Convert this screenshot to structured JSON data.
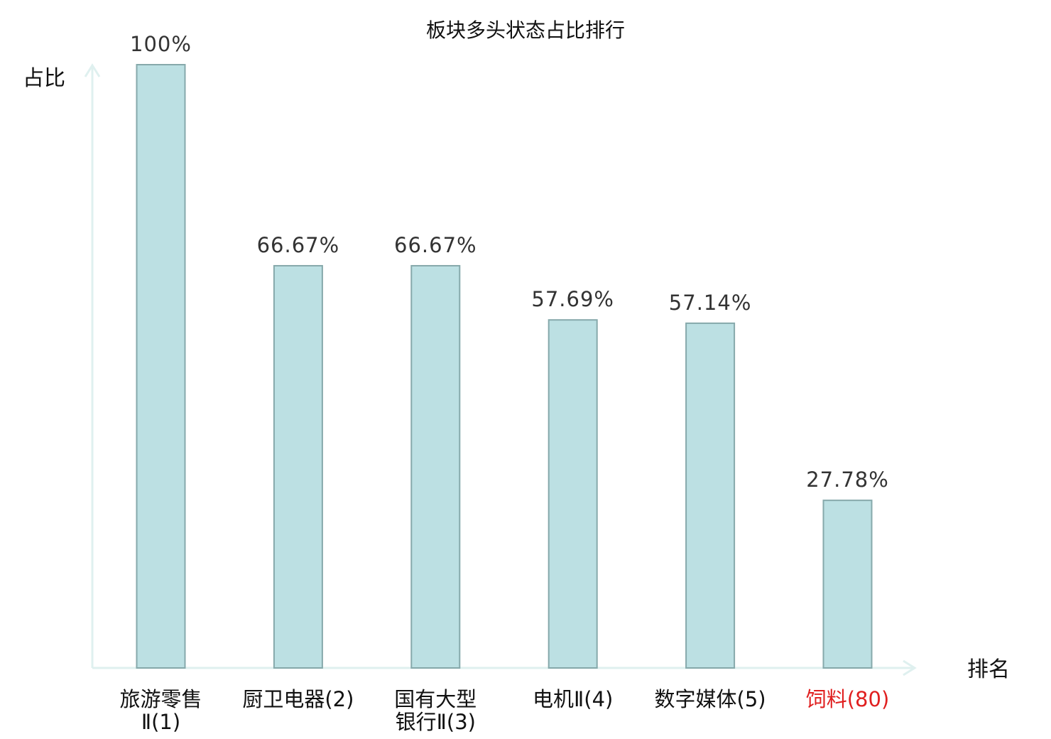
{
  "chart_data": {
    "type": "bar",
    "title": "板块多头状态占比排行",
    "ylabel": "占比",
    "xlabel": "排名",
    "ylim": [
      0,
      100
    ],
    "grid": false,
    "categories": [
      {
        "lines": [
          "旅游零售",
          "Ⅱ(1)"
        ],
        "name": "旅游零售Ⅱ",
        "rank": "(1)"
      },
      {
        "lines": [
          "厨卫电器(2)"
        ],
        "name": "厨卫电器",
        "rank": "(2)"
      },
      {
        "lines": [
          "国有大型",
          "银行Ⅱ(3)"
        ],
        "name": "国有大型银行Ⅱ",
        "rank": "(3)"
      },
      {
        "lines": [
          "电机Ⅱ(4)"
        ],
        "name": "电机Ⅱ",
        "rank": "(4)"
      },
      {
        "lines": [
          "数字媒体(5)"
        ],
        "name": "数字媒体",
        "rank": "(5)"
      },
      {
        "lines": [
          "饲料(80)"
        ],
        "name": "饲料",
        "rank": "(80)"
      }
    ],
    "values": [
      100,
      66.67,
      66.67,
      57.69,
      57.14,
      27.78
    ],
    "value_labels": [
      "100%",
      "66.67%",
      "66.67%",
      "57.69%",
      "57.14%",
      "27.78%"
    ],
    "highlight_index": 5,
    "colors": {
      "bar_fill": "#bce0e3",
      "bar_stroke": "#86a9ab",
      "axis": "#dff0ef",
      "highlight": "#e02020"
    }
  }
}
